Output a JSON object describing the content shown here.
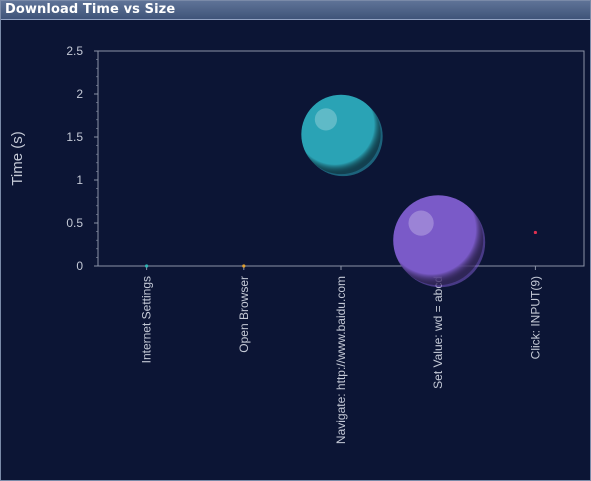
{
  "window": {
    "title": "Download Time vs Size"
  },
  "colors": {
    "background": "#0c1535",
    "plot_border": "#8b93a8",
    "text": "#c4c9d6"
  },
  "chart_data": {
    "type": "scatter",
    "variant": "bubble",
    "title": "Download Time vs Size",
    "xlabel": "",
    "ylabel": "Time (s)",
    "ylim": [
      0,
      2.5
    ],
    "yticks": [
      "0",
      "0.5",
      "1",
      "1.5",
      "2",
      "2.5"
    ],
    "grid": false,
    "legend": "none",
    "categories": [
      "Internet Settings",
      "Open Browser",
      "Navigate: http://www.baidu.com",
      "Set Value: wd = abcd",
      "Click: INPUT(9)"
    ],
    "points": [
      {
        "category": "Internet Settings",
        "y": 0.0,
        "size": 1,
        "color": "#2fb3b3"
      },
      {
        "category": "Open Browser",
        "y": 0.0,
        "size": 1,
        "color": "#e0a030"
      },
      {
        "category": "Navigate: http://www.baidu.com",
        "y": 1.53,
        "size": 35,
        "color": "#2aa3b5"
      },
      {
        "category": "Set Value: wd = abcd",
        "y": 0.3,
        "size": 45,
        "color": "#7a5ac8"
      },
      {
        "category": "Click: INPUT(9)",
        "y": 0.39,
        "size": 1,
        "color": "#e03050"
      }
    ]
  }
}
